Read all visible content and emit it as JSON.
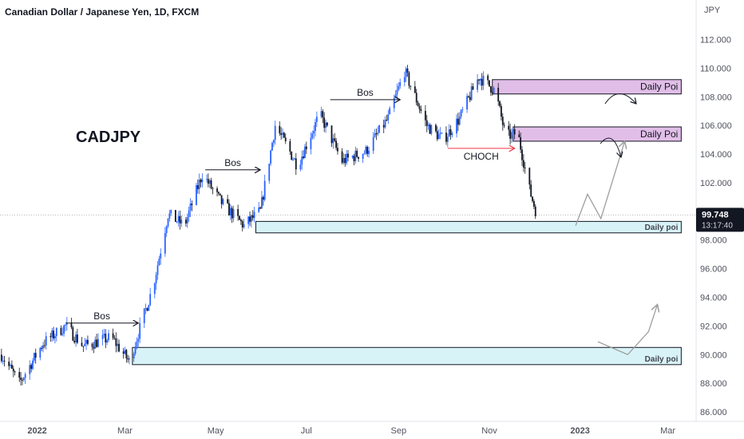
{
  "header": {
    "title": "Canadian Dollar / Japanese Yen, 1D, FXCM"
  },
  "colors": {
    "bull": "#2962ff",
    "bear": "#131722",
    "supply_fill": "#e1bee7",
    "demand_fill": "#d8f3f7",
    "projection": "#9e9e9e",
    "choch_arrow": "#f23645",
    "price_label_bg": "#131722"
  },
  "chart_data": {
    "type": "candlestick",
    "symbol_label": "CADJPY",
    "currency_label": "JPY",
    "ylim": [
      85.5,
      113.2
    ],
    "y_ticks": [
      "112.000",
      "110.000",
      "108.000",
      "106.000",
      "104.000",
      "102.000",
      "98.000",
      "96.000",
      "94.000",
      "92.000",
      "90.000",
      "88.000",
      "86.000"
    ],
    "y_tick_values": [
      112,
      110,
      108,
      106,
      104,
      102,
      98,
      96,
      94,
      92,
      90,
      88,
      86
    ],
    "x_ticks": [
      {
        "label": "2022",
        "date": "2022-01-01"
      },
      {
        "label": "Mar",
        "date": "2022-03-01"
      },
      {
        "label": "May",
        "date": "2022-05-01"
      },
      {
        "label": "Jul",
        "date": "2022-07-01"
      },
      {
        "label": "Sep",
        "date": "2022-09-01"
      },
      {
        "label": "Nov",
        "date": "2022-11-01"
      },
      {
        "label": "2023",
        "date": "2023-01-01"
      },
      {
        "label": "Mar",
        "date": "2023-03-01"
      }
    ],
    "x_range": [
      "2021-12-07",
      "2023-03-20"
    ],
    "price_path": [
      [
        "2021-12-08",
        90.0
      ],
      [
        "2021-12-20",
        88.0
      ],
      [
        "2022-01-05",
        90.8
      ],
      [
        "2022-01-20",
        92.0
      ],
      [
        "2022-02-01",
        90.6
      ],
      [
        "2022-02-20",
        91.2
      ],
      [
        "2022-03-04",
        89.5
      ],
      [
        "2022-03-20",
        94.8
      ],
      [
        "2022-03-30",
        99.8
      ],
      [
        "2022-04-10",
        99.0
      ],
      [
        "2022-04-22",
        102.6
      ],
      [
        "2022-05-05",
        100.6
      ],
      [
        "2022-05-20",
        99.0
      ],
      [
        "2022-05-31",
        100.0
      ],
      [
        "2022-06-10",
        106.0
      ],
      [
        "2022-06-25",
        103.2
      ],
      [
        "2022-07-10",
        106.8
      ],
      [
        "2022-07-25",
        103.5
      ],
      [
        "2022-08-10",
        104.2
      ],
      [
        "2022-08-25",
        106.5
      ],
      [
        "2022-09-05",
        109.8
      ],
      [
        "2022-09-20",
        106.0
      ],
      [
        "2022-10-01",
        105.0
      ],
      [
        "2022-10-12",
        106.5
      ],
      [
        "2022-10-25",
        109.4
      ],
      [
        "2022-11-05",
        108.4
      ],
      [
        "2022-11-12",
        105.2
      ],
      [
        "2022-11-20",
        105.5
      ],
      [
        "2022-11-28",
        101.5
      ],
      [
        "2022-12-03",
        99.75
      ]
    ],
    "current_price": "99.748",
    "countdown": "13:17:40",
    "last_price": 99.748,
    "zones": [
      {
        "kind": "supply",
        "label": "Daily Poi",
        "from": "2022-11-03",
        "to": "2023-03-10",
        "top": 109.2,
        "bottom": 108.2
      },
      {
        "kind": "supply",
        "label": "Daily Poi",
        "from": "2022-11-17",
        "to": "2023-03-10",
        "top": 105.9,
        "bottom": 104.9
      },
      {
        "kind": "demand",
        "label": "Daily poi",
        "from": "2022-05-28",
        "to": "2023-03-10",
        "top": 99.3,
        "bottom": 98.5
      },
      {
        "kind": "demand",
        "label": "Daily poi",
        "from": "2022-03-06",
        "to": "2023-03-10",
        "top": 90.5,
        "bottom": 89.3
      }
    ],
    "annotations": [
      {
        "text": "Bos",
        "from": "2022-01-20",
        "to": "2022-03-10",
        "level": 92.2
      },
      {
        "text": "Bos",
        "from": "2022-04-24",
        "to": "2022-05-31",
        "level": 102.9
      },
      {
        "text": "Bos",
        "from": "2022-07-17",
        "to": "2022-09-02",
        "level": 107.8
      },
      {
        "text": "CHOCH",
        "from": "2022-10-04",
        "to": "2022-11-18",
        "level": 104.4
      }
    ],
    "projections": [
      {
        "points": [
          [
            "2022-12-29",
            99.0
          ],
          [
            "2023-01-06",
            101.2
          ],
          [
            "2023-01-15",
            99.5
          ],
          [
            "2023-01-31",
            104.9
          ]
        ]
      },
      {
        "points": [
          [
            "2023-01-13",
            90.9
          ],
          [
            "2023-02-02",
            90.0
          ],
          [
            "2023-02-16",
            91.6
          ],
          [
            "2023-02-22",
            93.5
          ]
        ]
      }
    ]
  }
}
